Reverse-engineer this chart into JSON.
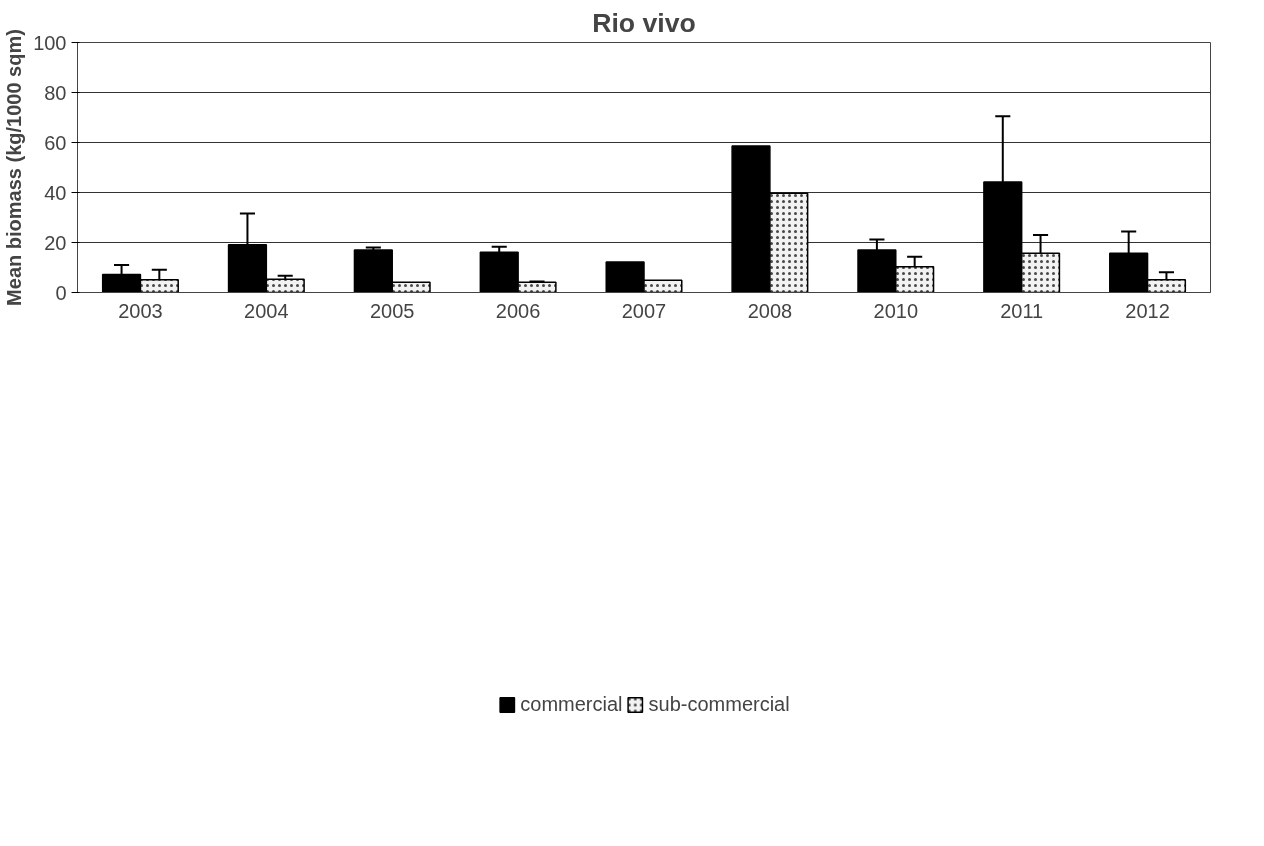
{
  "chart_data": {
    "type": "bar",
    "title": "Rio vivo",
    "ylabel": "Mean biomass (kg/1000 sqm)",
    "categories": [
      "2003",
      "2004",
      "2005",
      "2006",
      "2007",
      "2008",
      "2010",
      "2011",
      "2012"
    ],
    "series": [
      {
        "name": "commercial",
        "color": "#000000",
        "values": [
          7.2,
          19.1,
          17.0,
          16.1,
          12.2,
          58.6,
          17.0,
          44.2,
          15.7
        ],
        "errors": [
          [
            7.2,
            11.0
          ],
          [
            19.1,
            31.6
          ],
          [
            17.0,
            18.0
          ],
          [
            16.1,
            18.3
          ],
          null,
          null,
          [
            17.0,
            21.2
          ],
          [
            44.2,
            70.5
          ],
          [
            15.7,
            24.4
          ]
        ]
      },
      {
        "name": "sub-commercial",
        "color": "#f2f2f2",
        "values": [
          5.1,
          5.3,
          4.1,
          4.1,
          4.9,
          39.7,
          10.3,
          15.7,
          5.1
        ],
        "errors": [
          [
            5.1,
            9.1
          ],
          [
            5.3,
            6.7
          ],
          null,
          [
            4.1,
            4.4
          ],
          null,
          null,
          [
            10.3,
            14.3
          ],
          [
            15.7,
            23.0
          ],
          [
            5.1,
            8.1
          ]
        ]
      }
    ],
    "ylim": [
      0,
      100
    ],
    "yticks": [
      0,
      20,
      40,
      60,
      80,
      100
    ],
    "grid": "y",
    "legend": "bottom"
  }
}
